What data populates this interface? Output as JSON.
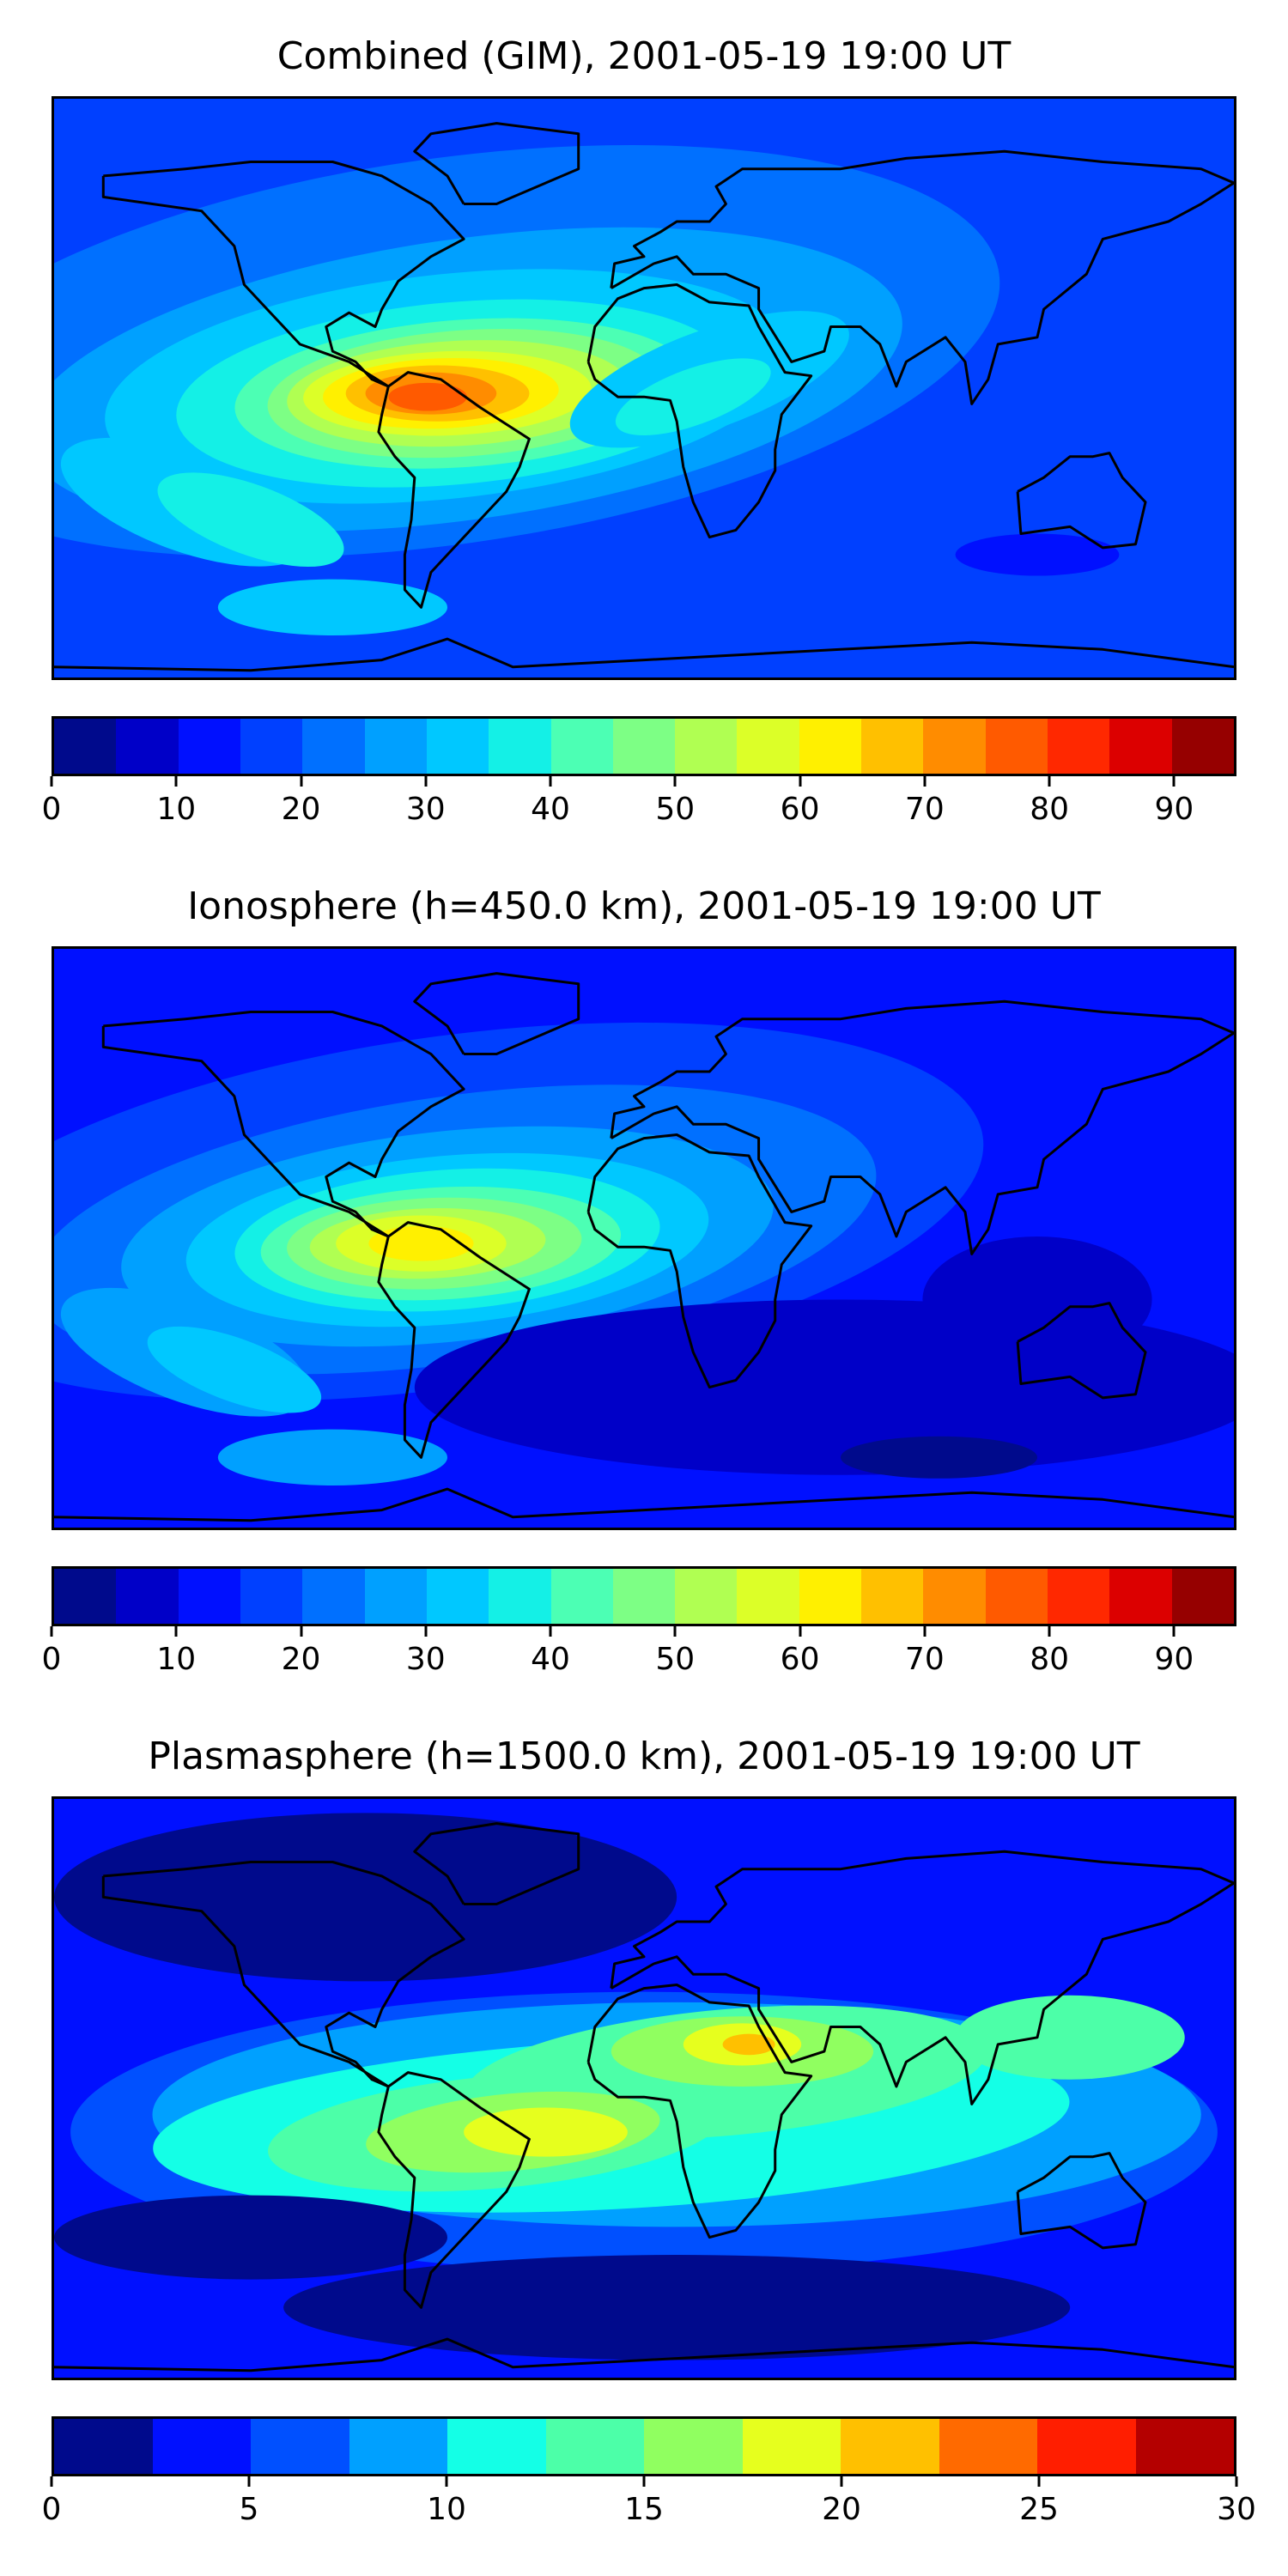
{
  "chart_data": [
    {
      "type": "heatmap",
      "title": "Combined (GIM), 2001-05-19 19:00 UT",
      "colorbar": {
        "levels": [
          0,
          5,
          10,
          15,
          20,
          25,
          30,
          35,
          40,
          45,
          50,
          55,
          60,
          65,
          70,
          75,
          80,
          85,
          90,
          95
        ],
        "colors": [
          "#000a8c",
          "#0000c8",
          "#0010ff",
          "#0040ff",
          "#0070ff",
          "#00a0ff",
          "#00c8ff",
          "#14f0e6",
          "#4cffb4",
          "#7dff85",
          "#b0ff52",
          "#dcff28",
          "#fff000",
          "#ffc000",
          "#ff8c00",
          "#ff5a00",
          "#ff2800",
          "#dc0000",
          "#960000"
        ],
        "ticks": [
          0,
          10,
          20,
          30,
          40,
          50,
          60,
          70,
          80,
          90
        ]
      },
      "background_level_index": 3,
      "features": [
        {
          "name": "South American / Atlantic TEC crest",
          "lon": -65,
          "lat": 6,
          "peak": 80
        },
        {
          "name": "North Atlantic band",
          "lon": -30,
          "lat": 30,
          "peak": 50
        },
        {
          "name": "African equatorial tail",
          "lon": 20,
          "lat": 10,
          "peak": 45
        },
        {
          "name": "Southern Pacific arm",
          "lon": -140,
          "lat": -25,
          "peak": 45
        }
      ]
    },
    {
      "type": "heatmap",
      "title": "Ionosphere  (h=450.0 km), 2001-05-19 19:00 UT",
      "colorbar": {
        "levels": [
          0,
          5,
          10,
          15,
          20,
          25,
          30,
          35,
          40,
          45,
          50,
          55,
          60,
          65,
          70,
          75,
          80,
          85,
          90,
          95
        ],
        "colors": [
          "#000a8c",
          "#0000c8",
          "#0010ff",
          "#0040ff",
          "#0070ff",
          "#00a0ff",
          "#00c8ff",
          "#14f0e6",
          "#4cffb4",
          "#7dff85",
          "#b0ff52",
          "#dcff28",
          "#fff000",
          "#ffc000",
          "#ff8c00",
          "#ff5a00",
          "#ff2800",
          "#dc0000",
          "#960000"
        ],
        "ticks": [
          0,
          10,
          20,
          30,
          40,
          50,
          60,
          70,
          80,
          90
        ]
      },
      "background_level_index": 2,
      "features": [
        {
          "name": "South American TEC crest",
          "lon": -68,
          "lat": 6,
          "peak": 65
        },
        {
          "name": "North Atlantic band",
          "lon": -35,
          "lat": 28,
          "peak": 45
        },
        {
          "name": "Southern Pacific arm",
          "lon": -140,
          "lat": -25,
          "peak": 40
        },
        {
          "name": "Southern ocean minimum",
          "lon": 80,
          "lat": -30,
          "peak": 8
        }
      ]
    },
    {
      "type": "heatmap",
      "title": "Plasmasphere (h=1500.0 km), 2001-05-19 19:00 UT",
      "colorbar": {
        "levels": [
          0,
          2.5,
          5,
          7.5,
          10,
          12.5,
          15,
          17.5,
          20,
          22.5,
          25,
          27.5,
          30
        ],
        "colors": [
          "#000a8c",
          "#0010ff",
          "#0050ff",
          "#00a0ff",
          "#14ffe6",
          "#4cffa8",
          "#90ff60",
          "#e6ff1e",
          "#ffc000",
          "#ff6a00",
          "#ff1e00",
          "#b40000"
        ],
        "ticks": [
          0,
          5,
          10,
          15,
          20,
          25,
          30
        ]
      },
      "background_level_index": 1,
      "features": [
        {
          "name": "Saharan / Middle East maximum",
          "lon": 30,
          "lat": 20,
          "peak": 22
        },
        {
          "name": "South Atlantic maximum",
          "lon": -30,
          "lat": -5,
          "peak": 18
        },
        {
          "name": "South American band",
          "lon": -70,
          "lat": -5,
          "peak": 15
        },
        {
          "name": "East Asian lobe",
          "lon": 130,
          "lat": 22,
          "peak": 12
        },
        {
          "name": "North American low",
          "lon": -90,
          "lat": 60,
          "peak": 2
        },
        {
          "name": "Southern ocean low",
          "lon": 0,
          "lat": -55,
          "peak": 2
        }
      ]
    }
  ]
}
